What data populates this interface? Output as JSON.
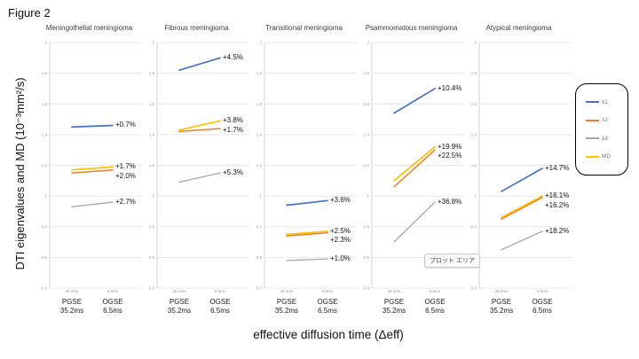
{
  "figure_label": "Figure 2",
  "y_axis_title": "DTI eigenvalues and MD (10⁻³mm²/s)",
  "x_axis_title": "effective diffusion time (Δeff)",
  "tooltip_text": "プロット エリア",
  "colors": {
    "lambda1": "#4472c4",
    "lambda2": "#ed7d31",
    "lambda3": "#a5a5a5",
    "md": "#ffc000"
  },
  "legend": {
    "position": "right",
    "items": [
      {
        "label": "λ1",
        "key": "lambda1"
      },
      {
        "label": "λ2",
        "key": "lambda2"
      },
      {
        "label": "λ3",
        "key": "lambda3"
      },
      {
        "label": "MD",
        "key": "md"
      }
    ]
  },
  "axis": {
    "y_ticks": [
      "2",
      "1.8",
      "1.6",
      "1.4",
      "1.2",
      "1",
      "0.8",
      "0.6",
      "0.4"
    ],
    "ylim": [
      0.4,
      2
    ],
    "grid": "on",
    "x_minor_ticks": [
      "35.2ms",
      "6.5ms"
    ],
    "x_categories": [
      {
        "line1": "PGSE",
        "line2": "35.2ms"
      },
      {
        "line1": "OGSE",
        "line2": "6.5ms"
      }
    ]
  },
  "chart_data": [
    {
      "type": "line",
      "title": "Meningothelial meningioma",
      "x": [
        "PGSE 35.2ms",
        "OGSE 6.5ms"
      ],
      "series": [
        {
          "name": "λ1",
          "key": "lambda1",
          "values": [
            1.45,
            1.46
          ],
          "change": "+0.7%"
        },
        {
          "name": "λ2",
          "key": "lambda2",
          "values": [
            1.15,
            1.17
          ],
          "change": "+2.0%"
        },
        {
          "name": "λ3",
          "key": "lambda3",
          "values": [
            0.93,
            0.96
          ],
          "change": "+2.7%"
        },
        {
          "name": "MD",
          "key": "md",
          "values": [
            1.17,
            1.19
          ],
          "change": "+1.7%"
        }
      ]
    },
    {
      "type": "line",
      "title": "Fibrous meningioma",
      "x": [
        "PGSE 35.2ms",
        "OGSE 6.5ms"
      ],
      "series": [
        {
          "name": "λ1",
          "key": "lambda1",
          "values": [
            1.82,
            1.9
          ],
          "change": "+4.5%"
        },
        {
          "name": "λ2",
          "key": "lambda2",
          "values": [
            1.42,
            1.44
          ],
          "change": "+1.7%"
        },
        {
          "name": "λ3",
          "key": "lambda3",
          "values": [
            1.09,
            1.15
          ],
          "change": "+5.3%"
        },
        {
          "name": "MD",
          "key": "md",
          "values": [
            1.43,
            1.49
          ],
          "change": "+3.8%"
        }
      ]
    },
    {
      "type": "line",
      "title": "Transitional meningioma",
      "x": [
        "PGSE 35.2ms",
        "OGSE 6.5ms"
      ],
      "series": [
        {
          "name": "λ1",
          "key": "lambda1",
          "values": [
            0.94,
            0.97
          ],
          "change": "+3.6%"
        },
        {
          "name": "λ2",
          "key": "lambda2",
          "values": [
            0.74,
            0.76
          ],
          "change": "+2.3%"
        },
        {
          "name": "λ3",
          "key": "lambda3",
          "values": [
            0.58,
            0.59
          ],
          "change": "+1.0%"
        },
        {
          "name": "MD",
          "key": "md",
          "values": [
            0.75,
            0.77
          ],
          "change": "+2.5%"
        }
      ]
    },
    {
      "type": "line",
      "title": "Psammomatous meningioma",
      "x": [
        "PGSE 35.2ms",
        "OGSE 6.5ms"
      ],
      "series": [
        {
          "name": "λ1",
          "key": "lambda1",
          "values": [
            1.54,
            1.7
          ],
          "change": "+10.4%"
        },
        {
          "name": "λ2",
          "key": "lambda2",
          "values": [
            1.06,
            1.3
          ],
          "change": "+22.5%"
        },
        {
          "name": "λ3",
          "key": "lambda3",
          "values": [
            0.7,
            0.96
          ],
          "change": "+36.8%"
        },
        {
          "name": "MD",
          "key": "md",
          "values": [
            1.1,
            1.32
          ],
          "change": "+19.9%"
        }
      ]
    },
    {
      "type": "line",
      "title": "Atypical meningioma",
      "x": [
        "PGSE 35.2ms",
        "OGSE 6.5ms"
      ],
      "series": [
        {
          "name": "λ1",
          "key": "lambda1",
          "values": [
            1.03,
            1.18
          ],
          "change": "+14.7%"
        },
        {
          "name": "λ2",
          "key": "lambda2",
          "values": [
            0.85,
            0.99
          ],
          "change": "+16.2%"
        },
        {
          "name": "λ3",
          "key": "lambda3",
          "values": [
            0.65,
            0.77
          ],
          "change": "+18.2%"
        },
        {
          "name": "MD",
          "key": "md",
          "values": [
            0.86,
            1.0
          ],
          "change": "+16.1%"
        }
      ]
    }
  ]
}
